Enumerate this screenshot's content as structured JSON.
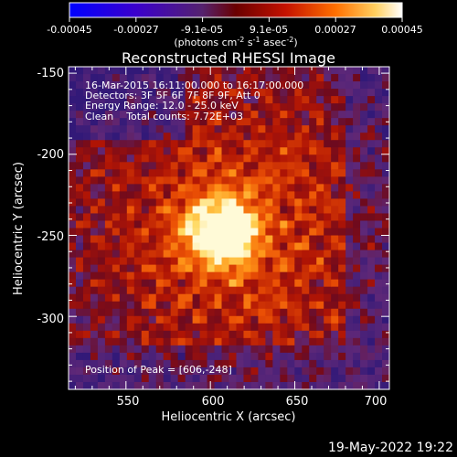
{
  "chart_data": {
    "type": "heatmap",
    "title": "Reconstructed RHESSI Image",
    "xlabel": "Heliocentric X (arcsec)",
    "ylabel": "Heliocentric Y (arcsec)",
    "x_ticks": [
      "550",
      "600",
      "650",
      "700"
    ],
    "y_ticks": [
      "-150",
      "-200",
      "-250",
      "-300"
    ],
    "x_tick_values": [
      550,
      600,
      650,
      700
    ],
    "y_tick_values": [
      -150,
      -200,
      -250,
      -300
    ],
    "xlim": [
      516,
      706
    ],
    "ylim": [
      -345,
      -146
    ],
    "colorbar": {
      "tick_labels": [
        "-0.00045",
        "-0.00027",
        "-9.1e-05",
        "9.1e-05",
        "0.00027",
        "0.00045"
      ],
      "range": [
        -0.00045,
        0.00045
      ],
      "unit_text": "(photons cm",
      "unit_parts": [
        "(photons cm",
        "-2",
        " s",
        "-1",
        " asec",
        "-2",
        ")"
      ]
    },
    "annotations": [
      "16-Mar-2015 16:11:00.000 to 16:17:00.000",
      "Detectors: 3F 5F 6F 7F 8F 9F, Att 0",
      "Energy Range: 12.0 - 25.0 keV",
      "Clean    Total counts: 7.72E+03"
    ],
    "peak_label": "Position of Peak = [606,-248]",
    "peak": [
      606,
      -248
    ],
    "date_stamp": "19-May-2022 19:22"
  }
}
